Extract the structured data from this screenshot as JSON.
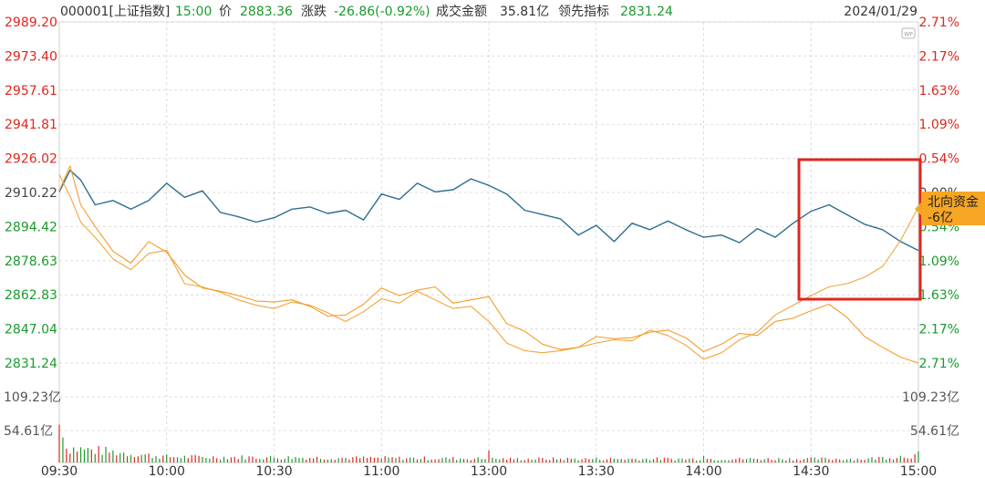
{
  "header": {
    "code_name": "000001[上证指数]",
    "time": "15:00",
    "price_label": "价",
    "price": "2883.36",
    "change_label": "涨跌",
    "change": "-26.86(-0.92%)",
    "amount_label": "成交金额",
    "amount": "35.81亿",
    "leading_label": "领先指标",
    "leading": "2831.24",
    "date": "2024/01/29"
  },
  "badge": {
    "line1": "北向资金",
    "line2": "-6亿"
  },
  "colors": {
    "up": "#e0261d",
    "down": "#1a9a2c",
    "price_line": "#2b6f8e",
    "northbound": "#f3a53b",
    "leading_line": "#f39c2b",
    "badge_bg": "#f6a623",
    "highlight_box": "#e0261d"
  },
  "chart_data": {
    "type": "line",
    "title": "",
    "x_ticks": [
      "09:30",
      "10:00",
      "10:30",
      "11:00",
      "13:00",
      "13:30",
      "14:00",
      "14:30",
      "15:00"
    ],
    "y_left_ticks": [
      "2989.20",
      "2973.40",
      "2957.61",
      "2941.81",
      "2926.02",
      "2910.22",
      "2894.42",
      "2878.63",
      "2862.83",
      "2847.04",
      "2831.24"
    ],
    "y_right_ticks": [
      "2.71%",
      "2.17%",
      "1.63%",
      "1.09%",
      "0.54%",
      "0.00%",
      "0.54%",
      "1.09%",
      "1.63%",
      "2.17%",
      "2.71%"
    ],
    "volume_ticks": [
      "109.23亿",
      "54.61亿"
    ],
    "ylim": [
      2831.24,
      2989.2
    ],
    "volume_ylim": [
      0,
      163.8
    ],
    "series": [
      {
        "color": "#2b6f8e",
        "x": [
          "09:30",
          "09:33",
          "09:36",
          "09:40",
          "09:45",
          "09:50",
          "09:55",
          "10:00",
          "10:05",
          "10:10",
          "10:15",
          "10:20",
          "10:25",
          "10:30",
          "10:35",
          "10:40",
          "10:45",
          "10:50",
          "10:55",
          "11:00",
          "11:05",
          "11:10",
          "11:15",
          "11:20",
          "11:25",
          "11:30",
          "13:05",
          "13:10",
          "13:15",
          "13:20",
          "13:25",
          "13:30",
          "13:35",
          "13:40",
          "13:45",
          "13:50",
          "13:55",
          "14:00",
          "14:05",
          "14:10",
          "14:15",
          "14:20",
          "14:25",
          "14:30",
          "14:35",
          "14:40",
          "14:45",
          "14:50",
          "14:55",
          "15:00"
        ],
        "values": [
          2910.5,
          2920.5,
          2916.0,
          2904.5,
          2906.5,
          2902.5,
          2906.5,
          2914.5,
          2908.0,
          2911.0,
          2901.0,
          2899.0,
          2896.5,
          2898.5,
          2902.5,
          2903.5,
          2900.5,
          2902.0,
          2897.5,
          2909.5,
          2907.0,
          2914.5,
          2910.5,
          2911.5,
          2916.5,
          2913.5,
          2909.5,
          2902.0,
          2900.0,
          2898.0,
          2890.5,
          2895.0,
          2887.5,
          2896.0,
          2893.0,
          2897.0,
          2893.0,
          2889.5,
          2890.5,
          2887.0,
          2893.5,
          2889.5,
          2896.0,
          2901.5,
          2904.5,
          2900.0,
          2895.5,
          2893.0,
          2887.5,
          2883.36
        ]
      },
      {
        "color": "#f3a53b",
        "x": [
          "09:30",
          "09:33",
          "09:36",
          "09:40",
          "09:45",
          "09:50",
          "09:55",
          "10:00",
          "10:05",
          "10:10",
          "10:15",
          "10:20",
          "10:25",
          "10:30",
          "10:35",
          "10:40",
          "10:45",
          "10:50",
          "10:55",
          "11:00",
          "11:05",
          "11:10",
          "11:15",
          "11:20",
          "11:25",
          "11:30",
          "13:05",
          "13:10",
          "13:15",
          "13:20",
          "13:25",
          "13:30",
          "13:35",
          "13:40",
          "13:45",
          "13:50",
          "13:55",
          "14:00",
          "14:05",
          "14:10",
          "14:15",
          "14:20",
          "14:25",
          "14:30",
          "14:35",
          "14:40",
          "14:45",
          "14:50",
          "14:55",
          "15:00"
        ],
        "values": [
          2918.5,
          2908.5,
          2896.5,
          2889.5,
          2879.5,
          2874.5,
          2882.0,
          2883.5,
          2868.0,
          2866.5,
          2864.0,
          2860.5,
          2858.0,
          2856.5,
          2859.5,
          2858.0,
          2854.5,
          2850.5,
          2855.0,
          2861.0,
          2859.0,
          2864.5,
          2860.5,
          2856.5,
          2857.5,
          2850.5,
          2840.5,
          2837.0,
          2836.0,
          2837.0,
          2838.5,
          2840.5,
          2842.0,
          2841.5,
          2846.5,
          2844.0,
          2839.5,
          2833.0,
          2836.0,
          2842.0,
          2845.5,
          2853.5,
          2858.0,
          2862.5,
          2866.5,
          2868.0,
          2871.0,
          2876.0,
          2888.0,
          2903.5
        ]
      },
      {
        "color": "#f39c2b",
        "x": [
          "09:30",
          "09:33",
          "09:36",
          "09:40",
          "09:45",
          "09:50",
          "09:55",
          "10:00",
          "10:05",
          "10:10",
          "10:15",
          "10:20",
          "10:25",
          "10:30",
          "10:35",
          "10:40",
          "10:45",
          "10:50",
          "10:55",
          "11:00",
          "11:05",
          "11:10",
          "11:15",
          "11:20",
          "11:25",
          "11:30",
          "13:05",
          "13:10",
          "13:15",
          "13:20",
          "13:25",
          "13:30",
          "13:35",
          "13:40",
          "13:45",
          "13:50",
          "13:55",
          "14:00",
          "14:05",
          "14:10",
          "14:15",
          "14:20",
          "14:25",
          "14:30",
          "14:35",
          "14:40",
          "14:45",
          "14:50",
          "14:55",
          "15:00"
        ],
        "values": [
          2911.0,
          2922.5,
          2904.5,
          2894.5,
          2883.0,
          2877.5,
          2887.5,
          2882.5,
          2872.0,
          2866.0,
          2864.5,
          2862.5,
          2860.0,
          2859.5,
          2860.5,
          2857.5,
          2853.0,
          2853.5,
          2858.5,
          2866.0,
          2862.5,
          2865.0,
          2866.5,
          2859.0,
          2860.5,
          2862.0,
          2849.5,
          2846.0,
          2840.0,
          2837.5,
          2838.5,
          2843.5,
          2842.5,
          2843.0,
          2845.5,
          2846.5,
          2843.0,
          2836.5,
          2840.0,
          2845.0,
          2844.0,
          2850.5,
          2852.0,
          2855.5,
          2858.5,
          2852.5,
          2843.5,
          2838.5,
          2834.0,
          2831.24
        ]
      }
    ],
    "volume": {
      "note": "",
      "up_color": "#e0261d",
      "down_color": "#1a9a2c"
    }
  }
}
